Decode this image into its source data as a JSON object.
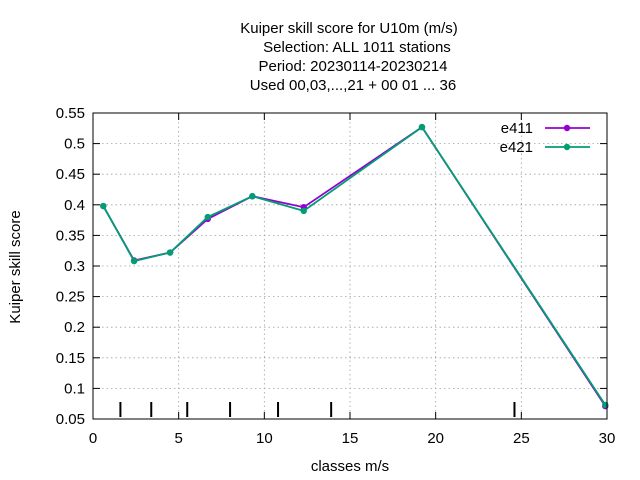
{
  "chart_data": {
    "type": "line",
    "title_lines": [
      "Kuiper skill score  for U10m (m/s)",
      "Selection: ALL   1011 stations",
      "Period: 20230114-20230214",
      "Used  00,03,...,21  + 00 01 ... 36"
    ],
    "xlabel": "classes m/s",
    "ylabel": "Kuiper skill score",
    "xlim": [
      0,
      30
    ],
    "ylim": [
      0.05,
      0.55
    ],
    "xticks": [
      0,
      5,
      10,
      15,
      20,
      25,
      30
    ],
    "yticks": [
      0.05,
      0.1,
      0.15,
      0.2,
      0.25,
      0.3,
      0.35,
      0.4,
      0.45,
      0.5,
      0.55
    ],
    "ytick_labels": [
      "0.05",
      "0.1",
      "0.15",
      "0.2",
      "0.25",
      "0.3",
      "0.35",
      "0.4",
      "0.45",
      "0.5",
      "0.55"
    ],
    "grid": true,
    "legend_position": "top-right",
    "class_markers_x": [
      1.6,
      3.4,
      5.5,
      8.0,
      10.8,
      13.9,
      24.6
    ],
    "series": [
      {
        "name": "e411",
        "color": "#9400d3",
        "x": [
          0.6,
          2.4,
          4.5,
          6.7,
          9.3,
          12.3,
          19.2,
          29.9
        ],
        "y": [
          0.398,
          0.309,
          0.322,
          0.377,
          0.414,
          0.396,
          0.527,
          0.071
        ]
      },
      {
        "name": "e421",
        "color": "#009e73",
        "x": [
          0.6,
          2.4,
          4.5,
          6.7,
          9.3,
          12.3,
          19.2,
          29.9
        ],
        "y": [
          0.398,
          0.308,
          0.322,
          0.38,
          0.414,
          0.39,
          0.527,
          0.073
        ]
      }
    ]
  }
}
